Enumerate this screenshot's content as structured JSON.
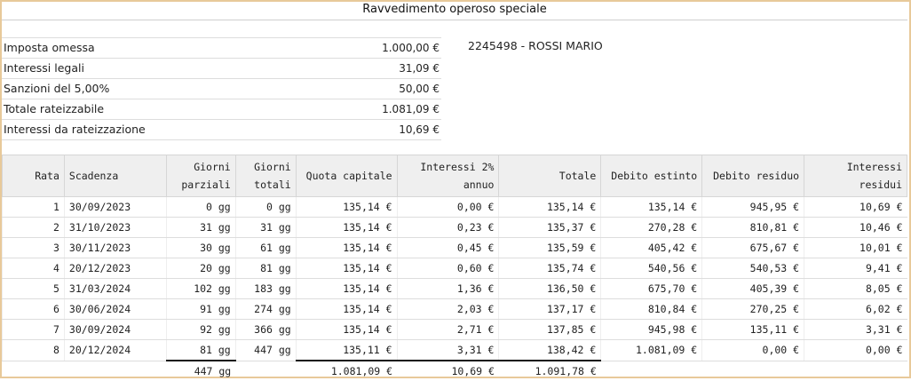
{
  "title": "Ravvedimento operoso speciale",
  "summary": [
    {
      "label": "Imposta omessa",
      "value": "1.000,00 €"
    },
    {
      "label": "Interessi legali",
      "value": "31,09 €"
    },
    {
      "label": "Sanzioni del 5,00%",
      "value": "50,00 €"
    },
    {
      "label": "Totale rateizzabile",
      "value": "1.081,09 €"
    },
    {
      "label": "Interessi da rateizzazione",
      "value": "10,69 €"
    }
  ],
  "client": "2245498 - ROSSI MARIO",
  "table": {
    "headers": {
      "rata": "Rata",
      "scadenza": "Scadenza",
      "giorni_parziali_1": "Giorni",
      "giorni_parziali_2": "parziali",
      "giorni_totali_1": "Giorni",
      "giorni_totali_2": "totali",
      "quota_capitale": "Quota capitale",
      "interessi_1": "Interessi 2%",
      "interessi_2": "annuo",
      "totale": "Totale",
      "debito_estinto": "Debito estinto",
      "debito_residuo": "Debito residuo",
      "interessi_residui_1": "Interessi",
      "interessi_residui_2": "residui"
    },
    "rows": [
      {
        "rata": "1",
        "scadenza": "30/09/2023",
        "gp": "0 gg",
        "gt": "0 gg",
        "quota": "135,14 €",
        "interessi": "0,00 €",
        "totale": "135,14 €",
        "estinto": "135,14 €",
        "residuo": "945,95 €",
        "int_residui": "10,69 €"
      },
      {
        "rata": "2",
        "scadenza": "31/10/2023",
        "gp": "31 gg",
        "gt": "31 gg",
        "quota": "135,14 €",
        "interessi": "0,23 €",
        "totale": "135,37 €",
        "estinto": "270,28 €",
        "residuo": "810,81 €",
        "int_residui": "10,46 €"
      },
      {
        "rata": "3",
        "scadenza": "30/11/2023",
        "gp": "30 gg",
        "gt": "61 gg",
        "quota": "135,14 €",
        "interessi": "0,45 €",
        "totale": "135,59 €",
        "estinto": "405,42 €",
        "residuo": "675,67 €",
        "int_residui": "10,01 €"
      },
      {
        "rata": "4",
        "scadenza": "20/12/2023",
        "gp": "20 gg",
        "gt": "81 gg",
        "quota": "135,14 €",
        "interessi": "0,60 €",
        "totale": "135,74 €",
        "estinto": "540,56 €",
        "residuo": "540,53 €",
        "int_residui": "9,41 €"
      },
      {
        "rata": "5",
        "scadenza": "31/03/2024",
        "gp": "102 gg",
        "gt": "183 gg",
        "quota": "135,14 €",
        "interessi": "1,36 €",
        "totale": "136,50 €",
        "estinto": "675,70 €",
        "residuo": "405,39 €",
        "int_residui": "8,05 €"
      },
      {
        "rata": "6",
        "scadenza": "30/06/2024",
        "gp": "91 gg",
        "gt": "274 gg",
        "quota": "135,14 €",
        "interessi": "2,03 €",
        "totale": "137,17 €",
        "estinto": "810,84 €",
        "residuo": "270,25 €",
        "int_residui": "6,02 €"
      },
      {
        "rata": "7",
        "scadenza": "30/09/2024",
        "gp": "92 gg",
        "gt": "366 gg",
        "quota": "135,14 €",
        "interessi": "2,71 €",
        "totale": "137,85 €",
        "estinto": "945,98 €",
        "residuo": "135,11 €",
        "int_residui": "3,31 €"
      },
      {
        "rata": "8",
        "scadenza": "20/12/2024",
        "gp": "81 gg",
        "gt": "447 gg",
        "quota": "135,11 €",
        "interessi": "3,31 €",
        "totale": "138,42 €",
        "estinto": "1.081,09 €",
        "residuo": "0,00 €",
        "int_residui": "0,00 €"
      }
    ],
    "totals": {
      "gp": "447 gg",
      "quota": "1.081,09 €",
      "interessi": "10,69 €",
      "totale": "1.091,78 €"
    }
  },
  "colors": {
    "frame_border": "#e8c99a",
    "header_bg": "#efefef"
  }
}
